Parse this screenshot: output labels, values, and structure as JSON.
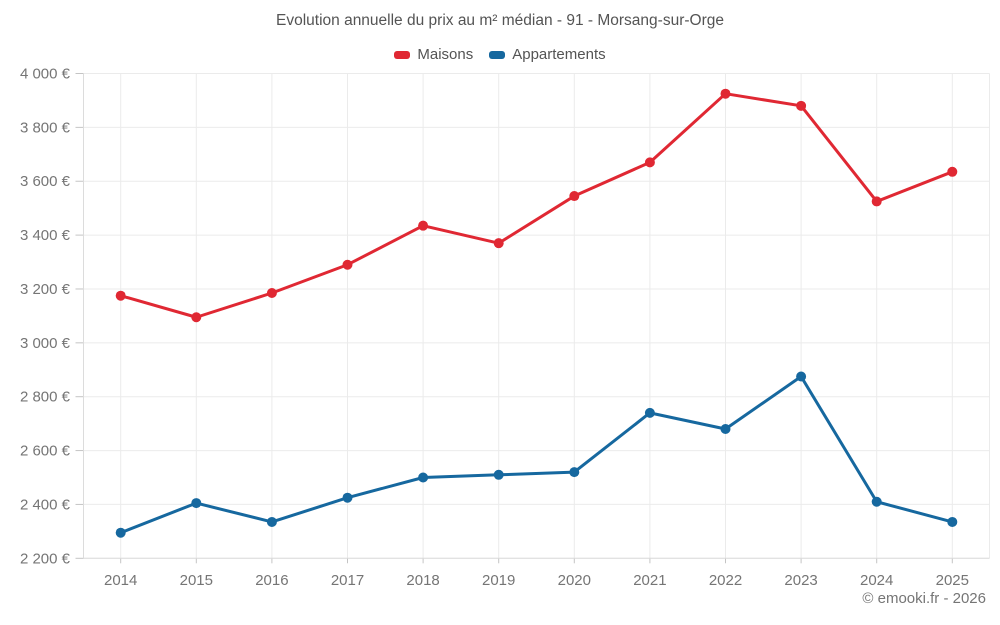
{
  "chart_data": {
    "type": "line",
    "title": "Evolution annuelle du prix au m² médian - 91 - Morsang-sur-Orge",
    "categories": [
      "2014",
      "2015",
      "2016",
      "2017",
      "2018",
      "2019",
      "2020",
      "2021",
      "2022",
      "2023",
      "2024",
      "2025"
    ],
    "series": [
      {
        "name": "Maisons",
        "color": "#e02833",
        "values": [
          3175,
          3095,
          3185,
          3290,
          3435,
          3370,
          3545,
          3670,
          3925,
          3880,
          3525,
          3635
        ]
      },
      {
        "name": "Appartements",
        "color": "#16689f",
        "values": [
          2295,
          2405,
          2335,
          2425,
          2500,
          2510,
          2520,
          2740,
          2680,
          2875,
          2410,
          2335
        ]
      }
    ],
    "y_ticks": [
      {
        "value": 4000,
        "label": "4 000 €"
      },
      {
        "value": 3800,
        "label": "3 800 €"
      },
      {
        "value": 3600,
        "label": "3 600 €"
      },
      {
        "value": 3400,
        "label": "3 400 €"
      },
      {
        "value": 3200,
        "label": "3 200 €"
      },
      {
        "value": 3000,
        "label": "3 000 €"
      },
      {
        "value": 2800,
        "label": "2 800 €"
      },
      {
        "value": 2600,
        "label": "2 600 €"
      },
      {
        "value": 2400,
        "label": "2 400 €"
      },
      {
        "value": 2200,
        "label": "2 200 €"
      }
    ],
    "ylim": [
      2200,
      4000
    ],
    "xlabel": "",
    "ylabel": "",
    "grid": true,
    "legend_position": "top"
  },
  "footer": {
    "credit": "© emooki.fr - 2026"
  },
  "style": {
    "grid_color": "#ebebeb",
    "axis_border_color": "#dcdcdc",
    "tick_color": "#c4c4c4",
    "axis_label_color": "#757575"
  }
}
